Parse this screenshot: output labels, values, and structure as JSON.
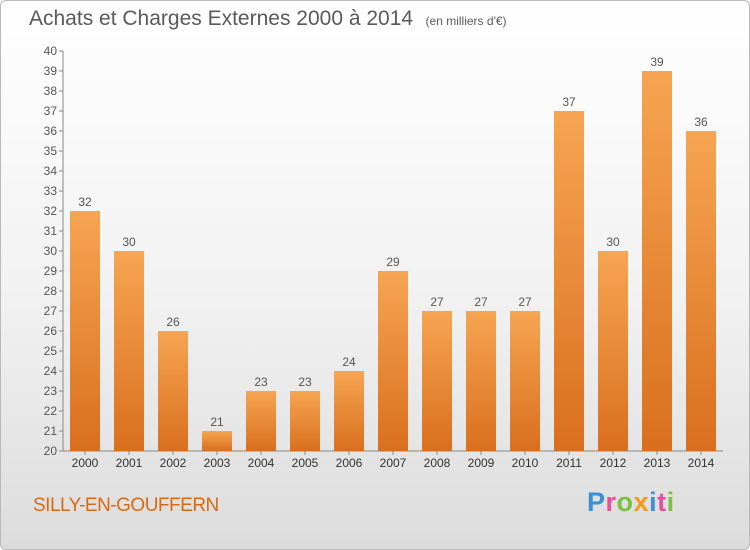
{
  "chart_data": {
    "type": "bar",
    "title": "Achats et Charges Externes 2000 à 2014",
    "subtitle": "(en milliers d'€)",
    "xlabel": "",
    "ylabel": "",
    "categories": [
      "2000",
      "2001",
      "2002",
      "2003",
      "2004",
      "2005",
      "2006",
      "2007",
      "2008",
      "2009",
      "2010",
      "2011",
      "2012",
      "2013",
      "2014"
    ],
    "values": [
      32,
      30,
      26,
      21,
      23,
      23,
      24,
      29,
      27,
      27,
      27,
      37,
      30,
      39,
      36
    ],
    "ylim": [
      20,
      40
    ],
    "ytick_step": 1,
    "grid": false,
    "data_labels": true,
    "colors": {
      "bar_light": "#f6a552",
      "bar_dark": "#d96f1e",
      "text": "#555555",
      "axis": "#888888"
    }
  },
  "footer": {
    "commune": "SILLY-EN-GOUFFERN",
    "brand_letters": [
      {
        "char": "P",
        "color": "#3a8fd6"
      },
      {
        "char": "r",
        "color": "#e94f9a"
      },
      {
        "char": "o",
        "color": "#7cc142"
      },
      {
        "char": "x",
        "color": "#f39a1d"
      },
      {
        "char": "i",
        "color": "#3a8fd6"
      },
      {
        "char": "t",
        "color": "#e94f9a"
      },
      {
        "char": "i",
        "color": "#7cc142"
      }
    ]
  }
}
